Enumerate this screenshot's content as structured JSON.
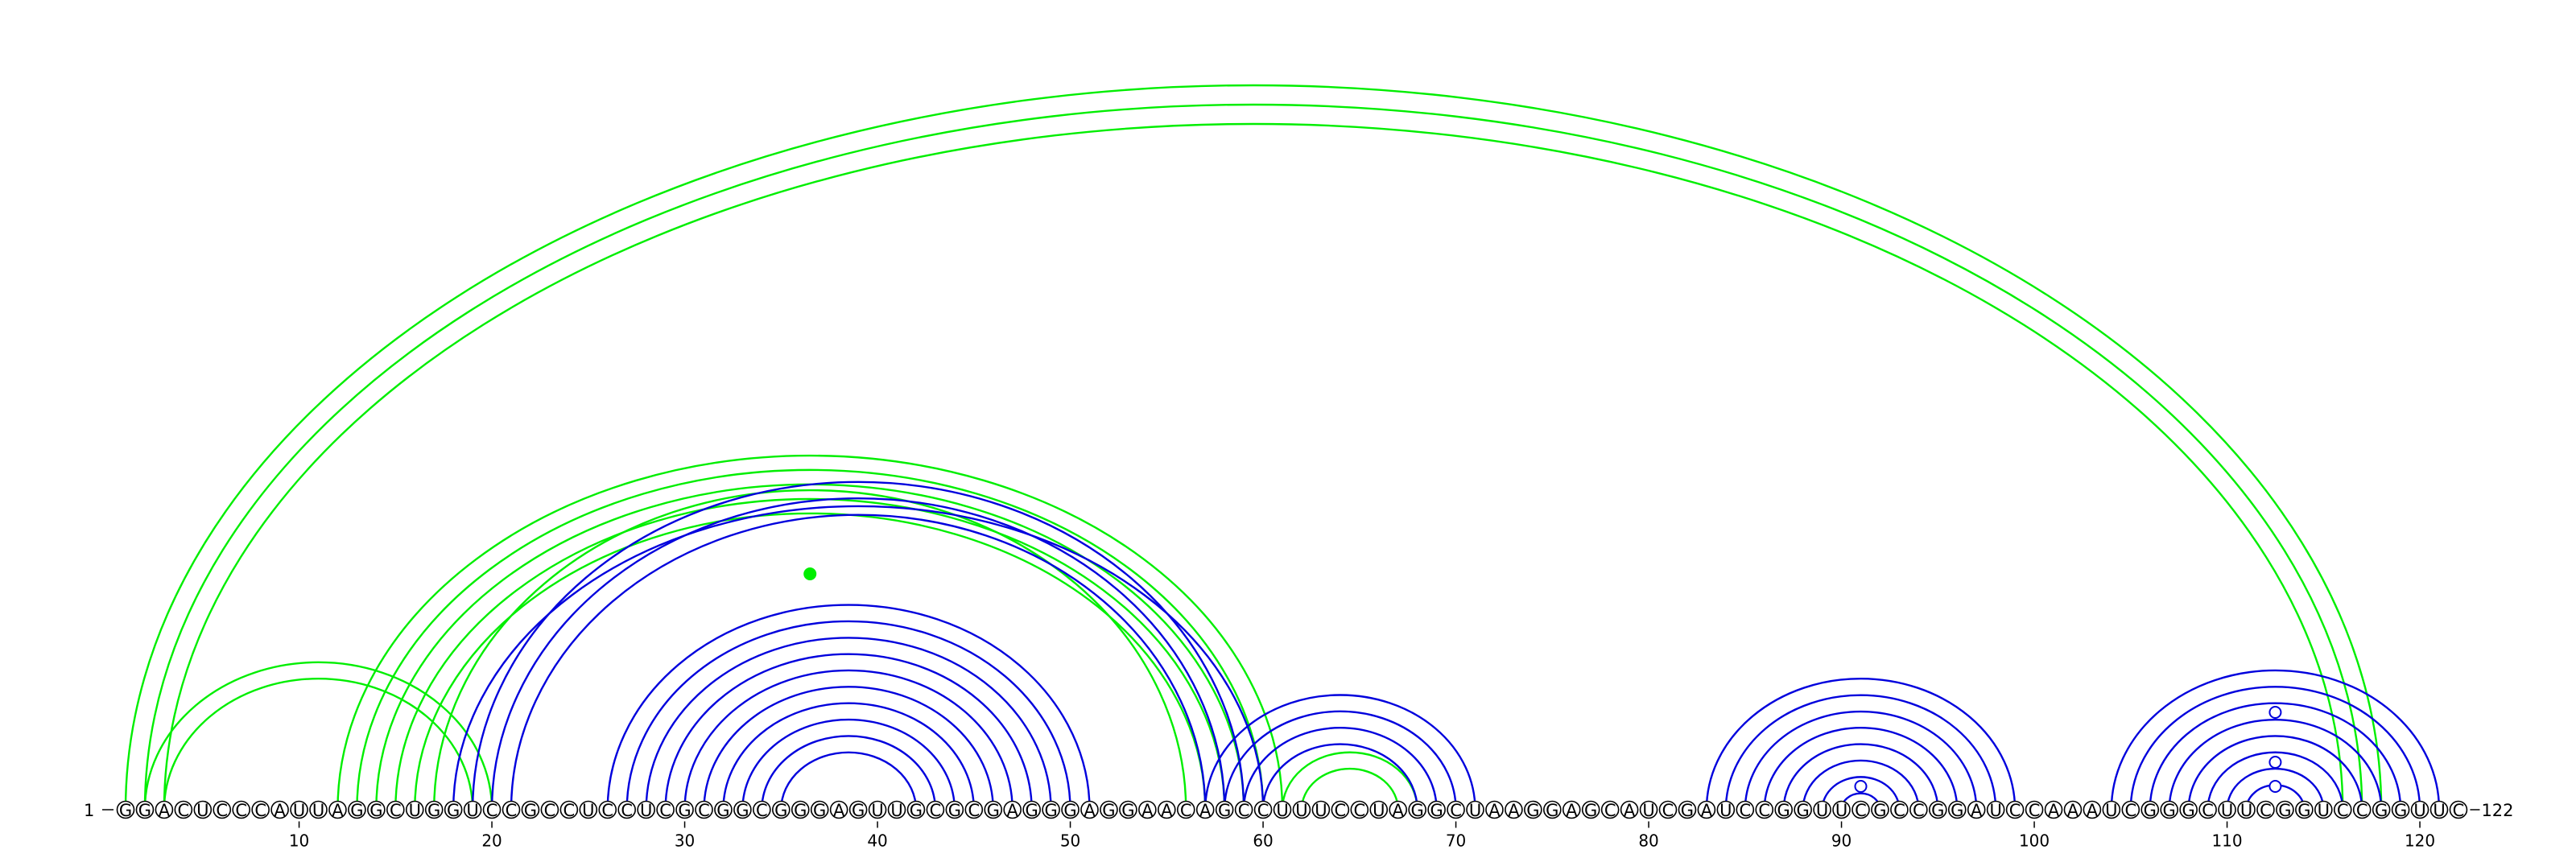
{
  "sequence": "GGACUCCCAUUAGGCUGGUCCGCCUCCUCGCGGCGGGAGUUGCGCGAGGGAGGAACAGCCUUUCCUAGGCUAAGGAGCAUCGAUCCGGUUCGCCGGAUCCAAAUCGGGCUUCGGUCCGGUUC",
  "start_label": "1",
  "end_label": "122",
  "tick_labels": [
    "10",
    "20",
    "30",
    "40",
    "50",
    "60",
    "70",
    "80",
    "90",
    "100",
    "110",
    "120"
  ],
  "colors": {
    "primary": "#0000dd",
    "alternate": "#00ee00",
    "node": "#ffffff"
  },
  "chart_data": {
    "type": "arc",
    "title": "",
    "xlabel": "",
    "ylabel": "",
    "sequence_length": 122,
    "x_ticks": [
      10,
      20,
      30,
      40,
      50,
      60,
      70,
      80,
      90,
      100,
      110,
      120
    ],
    "blue_pairs": [
      [
        18,
        60
      ],
      [
        19,
        59
      ],
      [
        20,
        58
      ],
      [
        21,
        57
      ],
      [
        26,
        51
      ],
      [
        27,
        50
      ],
      [
        28,
        49
      ],
      [
        29,
        48
      ],
      [
        30,
        47
      ],
      [
        31,
        46
      ],
      [
        32,
        45
      ],
      [
        33,
        44
      ],
      [
        34,
        43
      ],
      [
        35,
        42
      ],
      [
        57,
        71
      ],
      [
        58,
        70
      ],
      [
        59,
        69
      ],
      [
        60,
        68
      ],
      [
        83,
        99
      ],
      [
        84,
        98
      ],
      [
        85,
        97
      ],
      [
        86,
        96
      ],
      [
        87,
        95
      ],
      [
        88,
        94
      ],
      [
        89,
        93
      ],
      [
        90,
        92
      ],
      [
        104,
        121
      ],
      [
        105,
        120
      ],
      [
        106,
        119
      ],
      [
        107,
        118
      ],
      [
        108,
        117
      ],
      [
        109,
        116
      ],
      [
        110,
        115
      ],
      [
        111,
        114
      ]
    ],
    "green_pairs": [
      [
        1,
        118
      ],
      [
        2,
        117
      ],
      [
        3,
        116
      ],
      [
        2,
        20
      ],
      [
        3,
        19
      ],
      [
        12,
        61
      ],
      [
        13,
        60
      ],
      [
        14,
        59
      ],
      [
        15,
        58
      ],
      [
        16,
        57
      ],
      [
        17,
        56
      ],
      [
        61,
        68
      ],
      [
        62,
        67
      ]
    ],
    "markers": [
      {
        "position": 36.5,
        "type": "filled-green"
      },
      {
        "position": 91,
        "type": "open-blue"
      },
      {
        "position": 112.5,
        "type": "open-blue"
      }
    ]
  }
}
